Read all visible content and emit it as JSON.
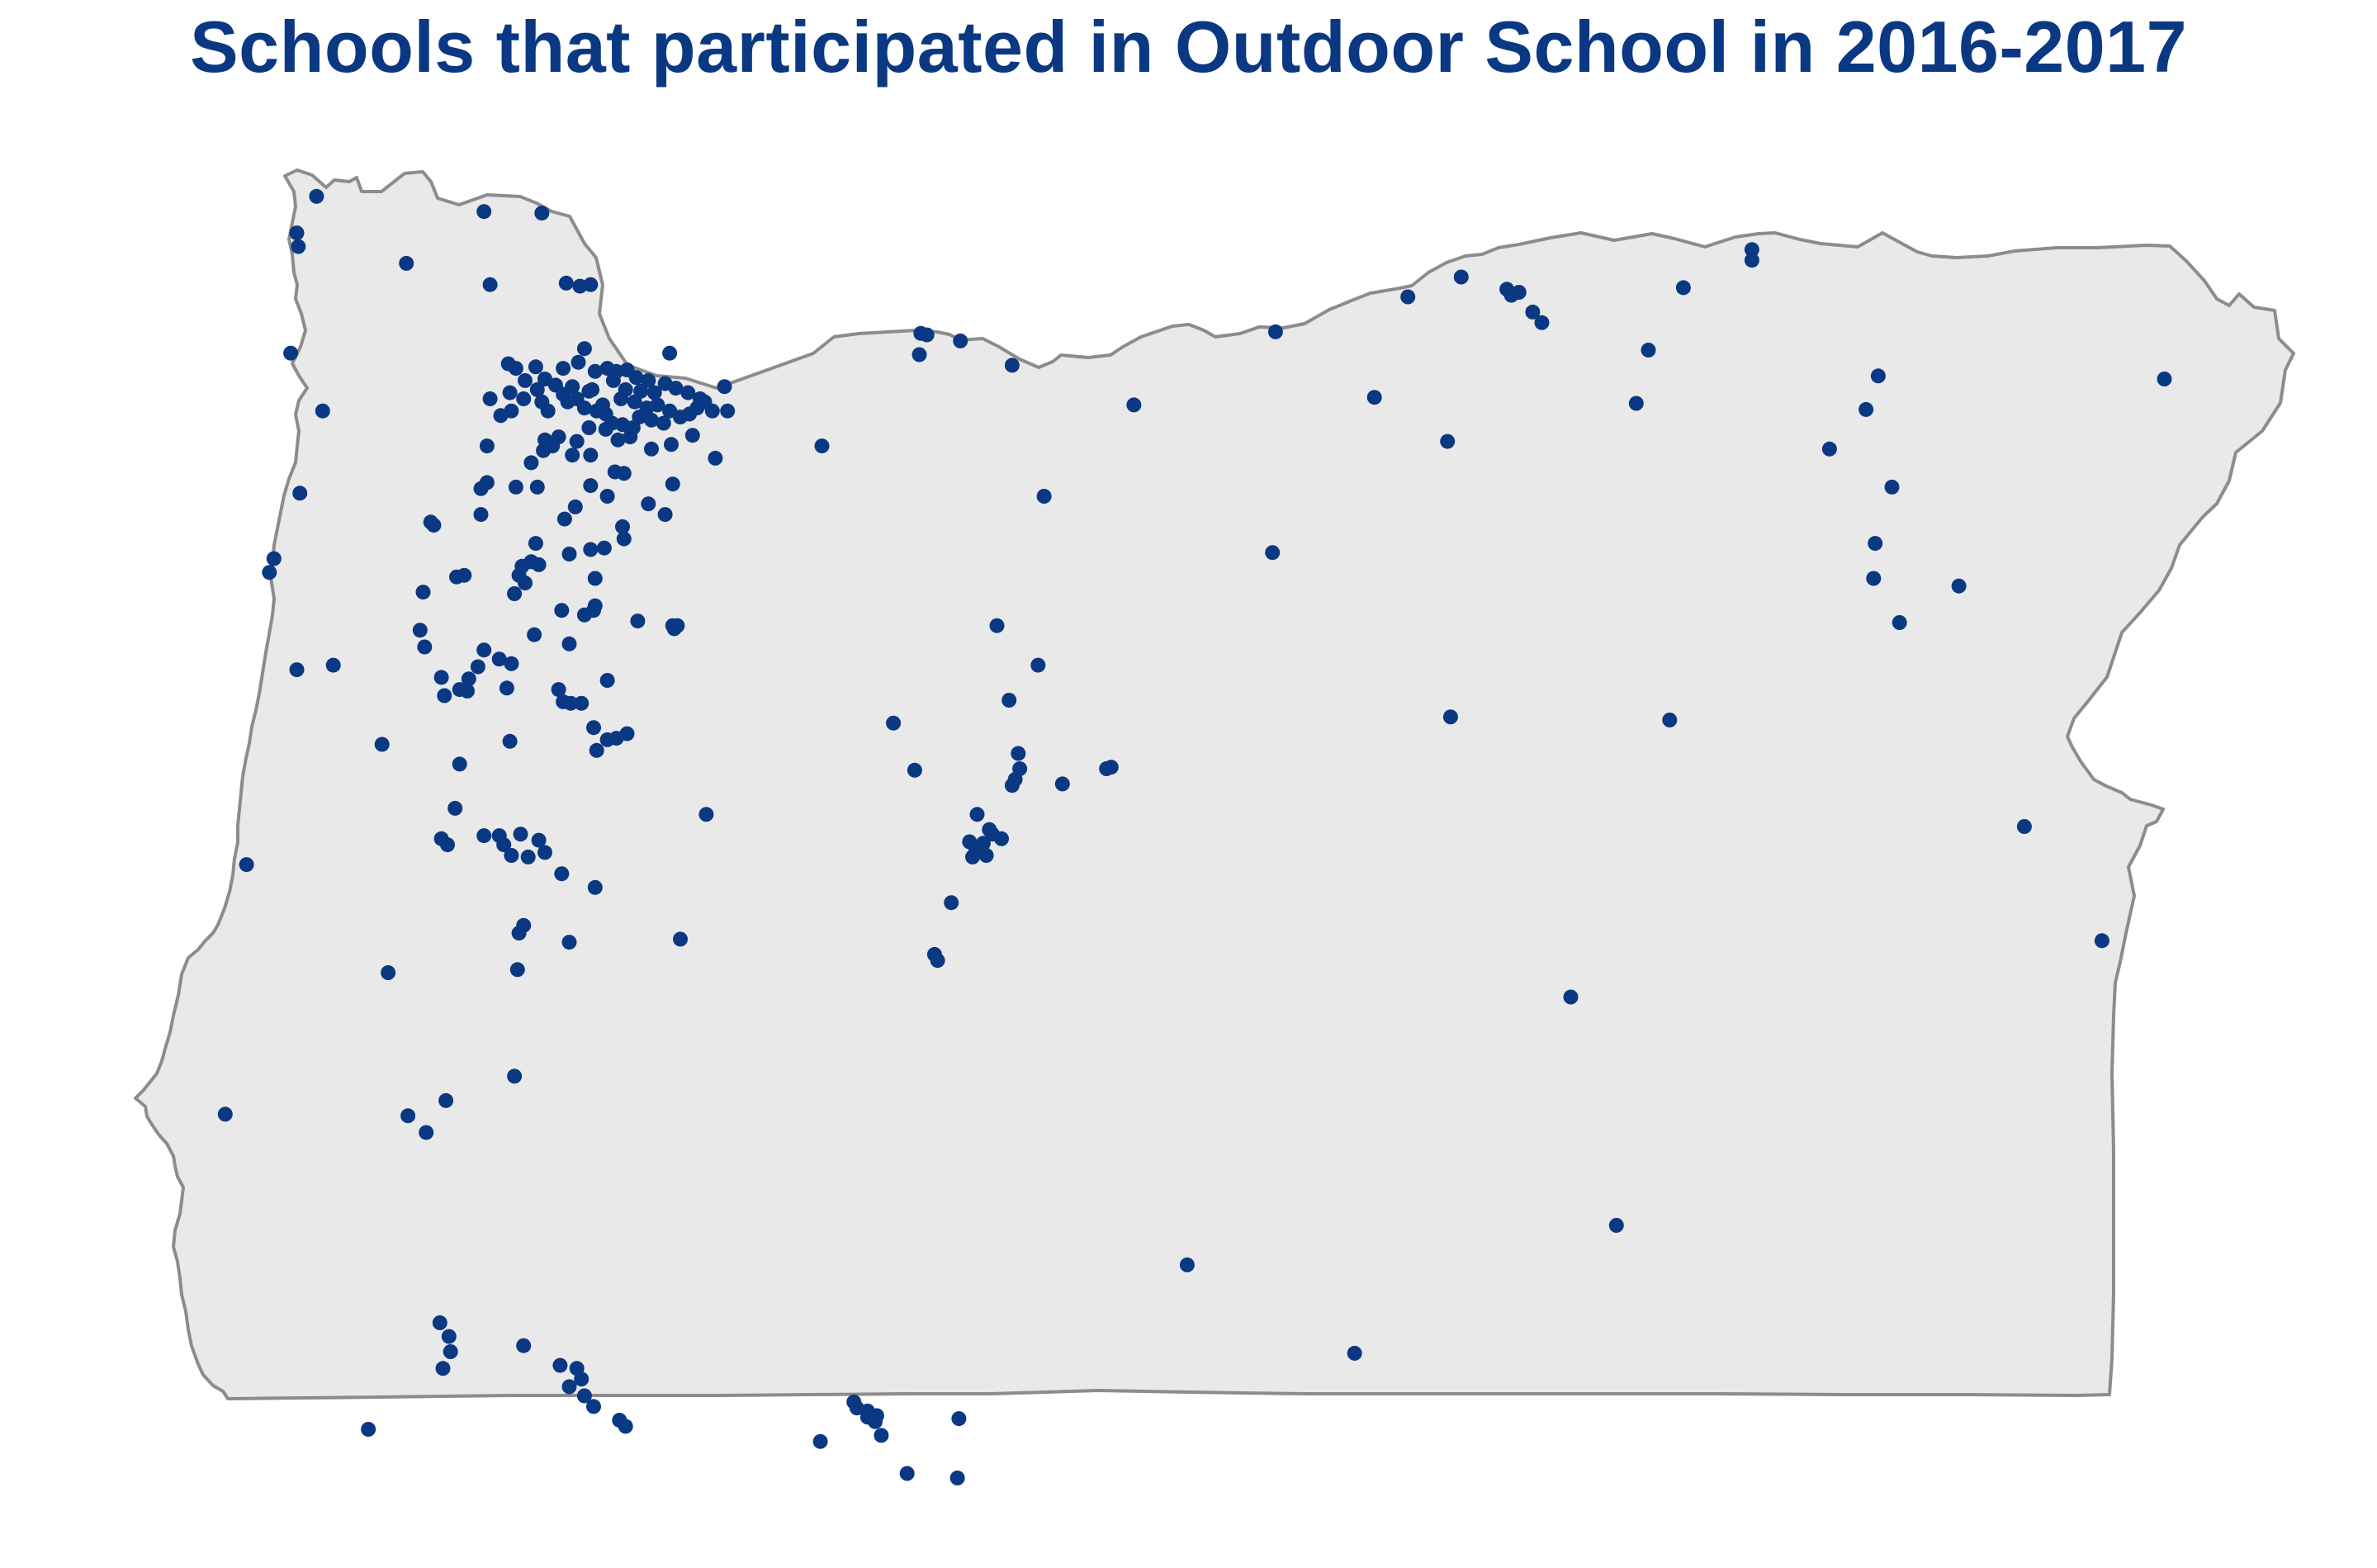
{
  "title": "Schools that participated in Outdoor School in 2016-2017",
  "colors": {
    "title": "#0a3882",
    "land": "#e9e9ea",
    "outline": "#8c8c8c",
    "marker": "#0a3882"
  },
  "map": {
    "region": "Oregon",
    "marker_type": "school-marker",
    "legend": "none"
  }
}
